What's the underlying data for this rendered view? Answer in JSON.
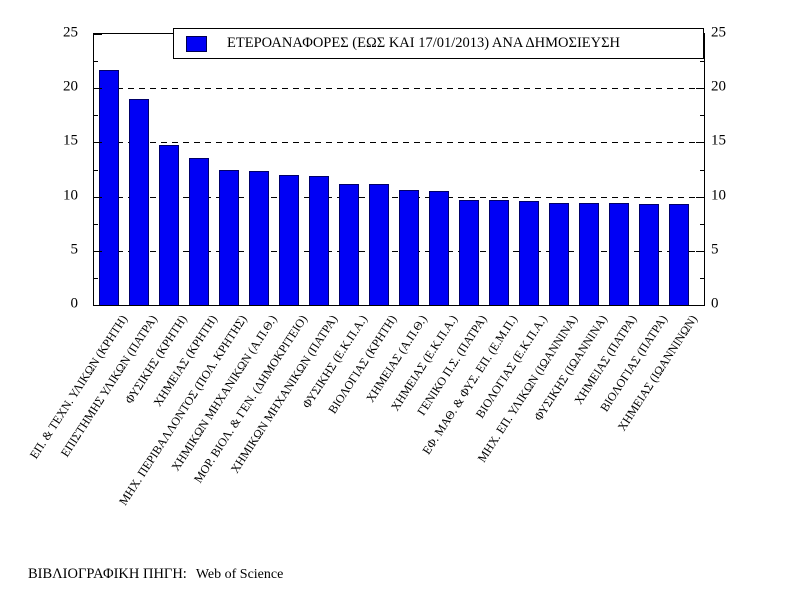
{
  "legend": {
    "label": "ΕΤΕΡΟΑΝΑΦΟΡΕΣ (ΕΩΣ ΚΑΙ 17/01/2013) ΑΝΑ ΔΗΜΟΣΙΕΥΣΗ"
  },
  "footer": {
    "source_label": "ΒΙΒΛΙΟΓΡΑΦΙΚΗ ΠΗΓΗ:",
    "source_value": "Web of Science"
  },
  "chart_data": {
    "type": "bar",
    "title": "",
    "xlabel": "",
    "ylabel": "",
    "legend_label": "ΕΤΕΡΟΑΝΑΦΟΡΕΣ (ΕΩΣ ΚΑΙ 17/01/2013) ΑΝΑ ΔΗΜΟΣΙΕΥΣΗ",
    "legend_position": "top",
    "categories": [
      "ΕΠ. & ΤΕΧΝ. ΥΛΙΚΩΝ (ΚΡΗΤΗ)",
      "ΕΠΙΣΤΗΜΗΣ ΥΛΙΚΩΝ (ΠΑΤΡΑ)",
      "ΦΥΣΙΚΗΣ (ΚΡΗΤΗ)",
      "ΧΗΜΕΙΑΣ (ΚΡΗΤΗ)",
      "ΜΗΧ. ΠΕΡΙΒΑΛΛΟΝΤΟΣ (ΠΟΛ. ΚΡΗΤΗΣ)",
      "ΧΗΜΙΚΩΝ ΜΗΧΑΝΙΚΩΝ (Α.Π.Θ.)",
      "ΜΟΡ. ΒΙΟΛ. & ΓΕΝ. (ΔΗΜΟΚΡΙΤΕΙΟ)",
      "ΧΗΜΙΚΩΝ ΜΗΧΑΝΙΚΩΝ (ΠΑΤΡΑ)",
      "ΦΥΣΙΚΗΣ (Ε.Κ.Π.Α.)",
      "ΒΙΟΛΟΓΙΑΣ (ΚΡΗΤΗ)",
      "ΧΗΜΕΙΑΣ (Α.Π.Θ.)",
      "ΧΗΜΕΙΑΣ (Ε.Κ.Π.Α.)",
      "ΓΕΝΙΚΟ Π.Σ. (ΠΑΤΡΑ)",
      "ΕΦ. ΜΑΘ. & ΦΥΣ. ΕΠ. (Ε.Μ.Π.)",
      "ΒΙΟΛΟΓΙΑΣ (Ε.Κ.Π.Α.)",
      "ΜΗΧ. ΕΠ. ΥΛΙΚΩΝ (ΙΩΑΝΝΙΝΑ)",
      "ΦΥΣΙΚΗΣ (ΙΩΑΝΝΙΝΑ)",
      "ΧΗΜΕΙΑΣ (ΠΑΤΡΑ)",
      "ΒΙΟΛΟΓΙΑΣ (ΠΑΤΡΑ)",
      "ΧΗΜΕΙΑΣ (ΙΩΑΝΝΙΝΩΝ)"
    ],
    "values": [
      21.7,
      19.0,
      14.8,
      13.6,
      12.5,
      12.4,
      12.0,
      11.9,
      11.2,
      11.2,
      10.6,
      10.5,
      9.7,
      9.7,
      9.6,
      9.4,
      9.4,
      9.4,
      9.3,
      9.3
    ],
    "ylim": [
      0,
      25
    ],
    "yticks": [
      0,
      5,
      10,
      15,
      20,
      25
    ],
    "minor_yticks": [
      2.5,
      7.5,
      12.5,
      17.5,
      22.5
    ],
    "gridlines_y": [
      5,
      10,
      15,
      20
    ],
    "grid_style": "dashed",
    "dual_y_axis": true,
    "x_tick_rotation_deg": 57,
    "bar_color": "#0000f5",
    "bar_edge_color": "#000068"
  }
}
